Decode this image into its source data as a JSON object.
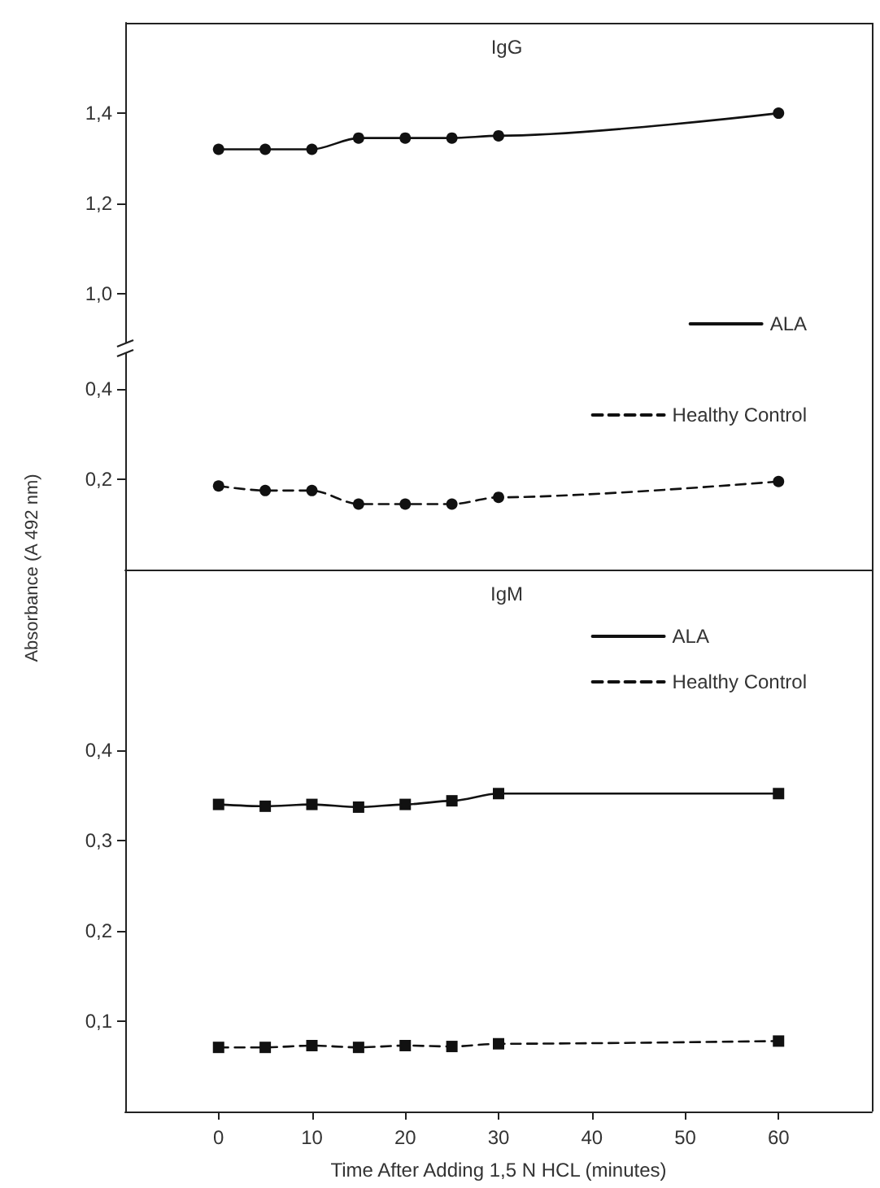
{
  "chart_data": [
    {
      "type": "line",
      "title": "IgG",
      "x": [
        0,
        5,
        10,
        15,
        20,
        25,
        30,
        60
      ],
      "xlim": [
        -10,
        70
      ],
      "xticks": [
        0,
        10,
        20,
        30,
        40,
        50,
        60
      ],
      "ylim": [
        0.88,
        1.6
      ],
      "yticks": [
        {
          "value": 1.0,
          "label": "1,0"
        },
        {
          "value": 1.2,
          "label": "1,2"
        },
        {
          "value": 1.4,
          "label": "1,4"
        }
      ],
      "tick_labels": "y",
      "marker": "circle",
      "legend": "bottom right",
      "grid": false,
      "series": [
        {
          "name": "ALA",
          "color": "#111111",
          "line_style": "solid",
          "values": [
            1.32,
            1.32,
            1.32,
            1.345,
            1.345,
            1.345,
            1.35,
            1.4
          ]
        }
      ]
    },
    {
      "type": "line",
      "x": [
        0,
        5,
        10,
        15,
        20,
        25,
        30,
        60
      ],
      "xlim": [
        -10,
        70
      ],
      "xticks": [
        0,
        10,
        20,
        30,
        40,
        50,
        60
      ],
      "ylim": [
        0,
        0.49
      ],
      "yticks": [
        {
          "value": 0.2,
          "label": "0,2"
        },
        {
          "value": 0.4,
          "label": "0,4"
        }
      ],
      "tick_labels": "y",
      "marker": "circle",
      "legend": "top right",
      "grid": false,
      "series": [
        {
          "name": "Healthy Control",
          "color": "#111111",
          "line_style": "dashed",
          "values": [
            0.185,
            0.175,
            0.175,
            0.145,
            0.145,
            0.145,
            0.16,
            0.195
          ]
        }
      ]
    },
    {
      "type": "line",
      "title": "IgM",
      "xlabel": "Time After Adding 1,5 N HCL (minutes)",
      "ylabel": "Absorbance (A 492 nm)",
      "x": [
        0,
        5,
        10,
        15,
        20,
        25,
        30,
        60
      ],
      "xlim": [
        -10,
        70
      ],
      "xticks": [
        0,
        10,
        20,
        30,
        40,
        50,
        60
      ],
      "ylim": [
        0,
        0.6
      ],
      "yticks": [
        {
          "value": 0.1,
          "label": "0,1"
        },
        {
          "value": 0.2,
          "label": "0,2"
        },
        {
          "value": 0.3,
          "label": "0,3"
        },
        {
          "value": 0.4,
          "label": "0,4"
        }
      ],
      "marker": "square",
      "legend": "top right",
      "grid": false,
      "series": [
        {
          "name": "ALA",
          "color": "#111111",
          "line_style": "solid",
          "values": [
            0.34,
            0.338,
            0.34,
            0.337,
            0.34,
            0.344,
            0.352,
            0.352
          ]
        },
        {
          "name": "Healthy Control",
          "color": "#111111",
          "line_style": "dashed",
          "values": [
            0.071,
            0.071,
            0.073,
            0.071,
            0.073,
            0.072,
            0.075,
            0.078
          ]
        }
      ]
    }
  ]
}
